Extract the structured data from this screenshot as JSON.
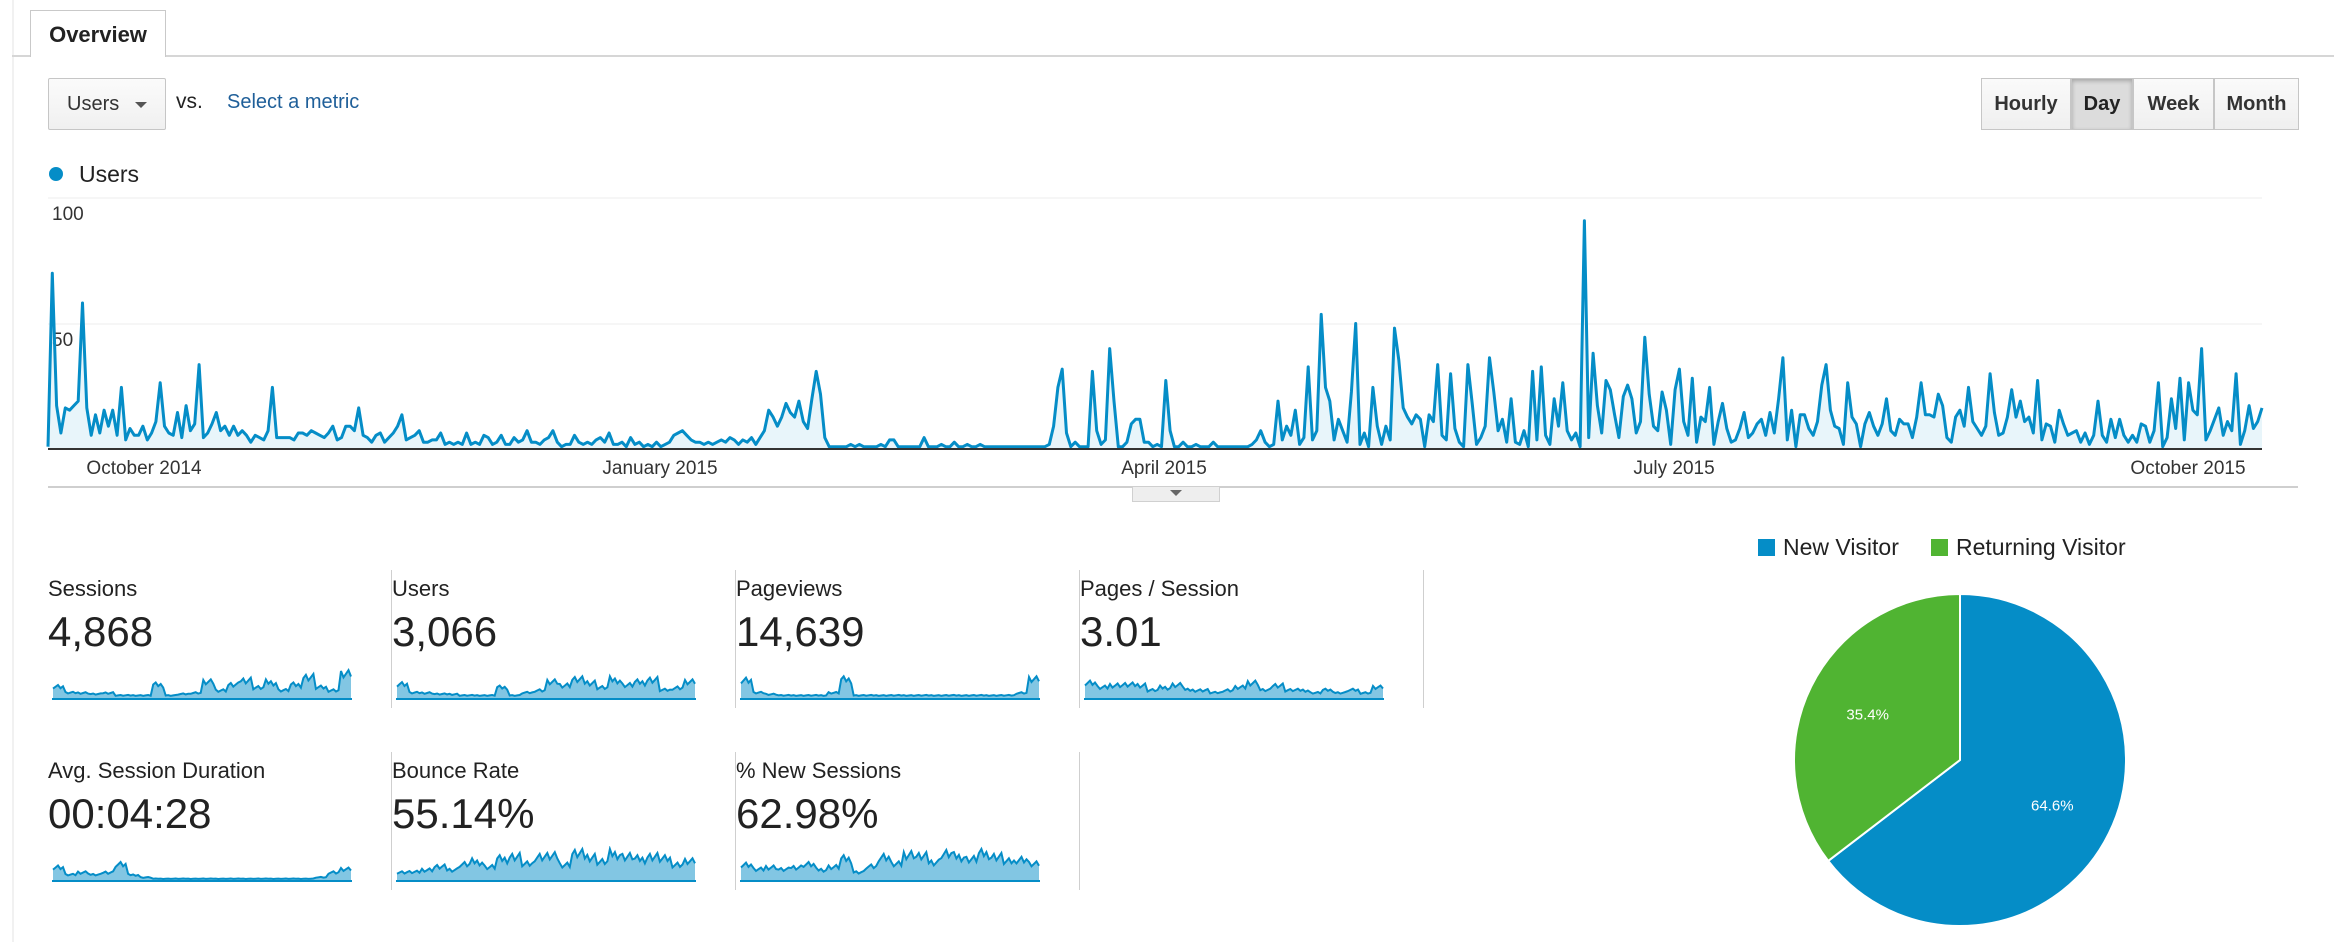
{
  "tabs": {
    "overview_label": "Overview"
  },
  "controls": {
    "metric_selected": "Users",
    "vs_label": "vs.",
    "select_metric_label": "Select a metric",
    "periods": [
      "Hourly",
      "Day",
      "Week",
      "Month"
    ],
    "active_period": "Day"
  },
  "colors": {
    "users": "#058dc7",
    "new_visitor": "#058dc7",
    "returning_visitor": "#50b432"
  },
  "chart_data": [
    {
      "type": "area",
      "series": [
        {
          "name": "Users",
          "color": "#058dc7",
          "values": [
            1,
            77,
            19,
            7,
            18,
            17,
            19,
            21,
            64,
            18,
            6,
            15,
            7,
            17,
            10,
            17,
            6,
            27,
            4,
            9,
            6,
            6,
            10,
            4,
            7,
            12,
            29,
            10,
            7,
            6,
            16,
            5,
            19,
            8,
            11,
            37,
            5,
            7,
            11,
            16,
            8,
            10,
            6,
            10,
            6,
            8,
            6,
            3,
            6,
            5,
            4,
            8,
            27,
            5,
            5,
            5,
            5,
            4,
            7,
            7,
            6,
            8,
            7,
            6,
            5,
            7,
            10,
            4,
            5,
            10,
            10,
            8,
            18,
            6,
            5,
            3,
            6,
            7,
            3,
            5,
            7,
            10,
            15,
            4,
            5,
            6,
            8,
            3,
            3,
            4,
            4,
            7,
            2,
            3,
            2,
            3,
            2,
            7,
            2,
            3,
            2,
            6,
            5,
            2,
            3,
            6,
            2,
            2,
            5,
            3,
            4,
            8,
            3,
            3,
            2,
            4,
            5,
            8,
            3,
            1,
            2,
            2,
            6,
            3,
            2,
            3,
            2,
            4,
            5,
            3,
            7,
            2,
            2,
            3,
            1,
            5,
            2,
            3,
            1,
            2,
            1,
            3,
            1,
            2,
            3,
            6,
            7,
            8,
            6,
            4,
            3,
            3,
            2,
            3,
            2,
            3,
            4,
            3,
            5,
            4,
            2,
            4,
            3,
            5,
            2,
            5,
            8,
            17,
            14,
            10,
            14,
            20,
            16,
            14,
            21,
            12,
            9,
            22,
            34,
            24,
            5,
            1,
            1,
            1,
            1,
            1,
            2,
            1,
            2,
            1,
            1,
            1,
            1,
            2,
            1,
            4,
            4,
            1,
            1,
            1,
            1,
            1,
            1,
            5,
            1,
            1,
            1,
            2,
            1,
            1,
            3,
            1,
            1,
            2,
            1,
            1,
            2,
            1,
            1,
            1,
            1,
            1,
            1,
            1,
            1,
            1,
            1,
            1,
            1,
            1,
            1,
            1,
            2,
            10,
            27,
            35,
            7,
            1,
            3,
            1,
            1,
            1,
            34,
            8,
            2,
            4,
            44,
            21,
            1,
            1,
            3,
            11,
            13,
            13,
            3,
            3,
            1,
            2,
            1,
            30,
            8,
            1,
            1,
            3,
            1,
            1,
            2,
            1,
            1,
            1,
            3,
            1,
            1,
            1,
            1,
            1,
            1,
            1,
            1,
            2,
            4,
            8,
            3,
            1,
            2,
            21,
            4,
            10,
            6,
            17,
            2,
            5,
            36,
            4,
            8,
            59,
            27,
            21,
            4,
            13,
            8,
            3,
            25,
            55,
            2,
            7,
            1,
            27,
            10,
            2,
            10,
            4,
            53,
            39,
            18,
            14,
            11,
            15,
            13,
            1,
            15,
            12,
            37,
            6,
            4,
            33,
            9,
            3,
            1,
            37,
            20,
            2,
            5,
            10,
            40,
            25,
            8,
            13,
            3,
            22,
            3,
            2,
            8,
            1,
            34,
            4,
            36,
            6,
            2,
            22,
            10,
            29,
            8,
            4,
            7,
            1,
            100,
            5,
            42,
            19,
            7,
            30,
            26,
            15,
            5,
            23,
            28,
            22,
            7,
            12,
            49,
            24,
            10,
            8,
            25,
            17,
            2,
            26,
            35,
            12,
            6,
            31,
            3,
            14,
            12,
            27,
            2,
            12,
            20,
            9,
            3,
            4,
            9,
            16,
            5,
            7,
            11,
            13,
            6,
            16,
            7,
            22,
            40,
            4,
            17,
            1,
            15,
            15,
            9,
            6,
            12,
            28,
            37,
            17,
            10,
            9,
            2,
            29,
            14,
            11,
            1,
            11,
            16,
            10,
            6,
            11,
            22,
            8,
            6,
            13,
            11,
            11,
            5,
            14,
            29,
            15,
            15,
            14,
            24,
            19,
            5,
            3,
            14,
            17,
            10,
            27,
            12,
            9,
            6,
            10,
            33,
            16,
            6,
            7,
            14,
            26,
            14,
            21,
            12,
            14,
            7,
            30,
            4,
            11,
            10,
            3,
            17,
            11,
            6,
            7,
            8,
            3,
            7,
            2,
            6,
            21,
            6,
            3,
            13,
            5,
            13,
            6,
            3,
            6,
            3,
            11,
            10,
            3,
            8,
            29,
            1,
            5,
            22,
            9,
            31,
            4,
            29,
            17,
            15,
            44,
            4,
            8,
            13,
            18,
            6,
            12,
            8,
            33,
            2,
            8,
            19,
            9,
            12,
            18
          ]
        }
      ],
      "x_tick_labels": [
        "October 2014",
        "January 2015",
        "April 2015",
        "July 2015",
        "October 2015"
      ],
      "y_tick_labels": [
        "100",
        "50"
      ],
      "ylim": [
        0,
        110
      ]
    },
    {
      "type": "pie",
      "series": [
        {
          "name": "New Visitor",
          "value": 64.6,
          "label": "64.6%",
          "color": "#058dc7"
        },
        {
          "name": "Returning Visitor",
          "value": 35.4,
          "label": "35.4%",
          "color": "#50b432"
        }
      ]
    }
  ],
  "metrics": [
    {
      "label": "Sessions",
      "value": "4,868"
    },
    {
      "label": "Users",
      "value": "3,066"
    },
    {
      "label": "Pageviews",
      "value": "14,639"
    },
    {
      "label": "Pages / Session",
      "value": "3.01"
    },
    {
      "label": "Avg. Session Duration",
      "value": "00:04:28"
    },
    {
      "label": "Bounce Rate",
      "value": "55.14%"
    },
    {
      "label": "% New Sessions",
      "value": "62.98%"
    }
  ],
  "pie_legend": [
    "New Visitor",
    "Returning Visitor"
  ]
}
